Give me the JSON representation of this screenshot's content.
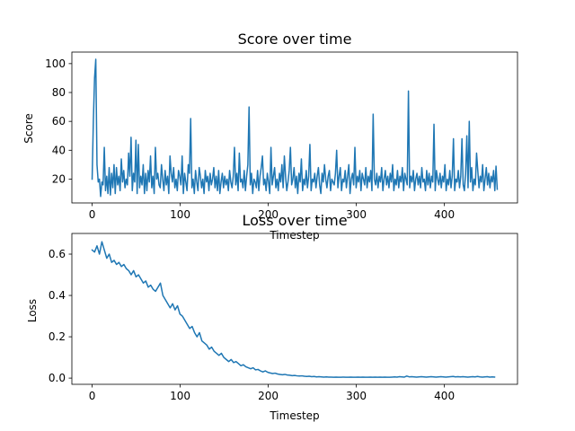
{
  "chart_data": [
    {
      "type": "line",
      "title": "Score over time",
      "xlabel": "Timestep",
      "ylabel": "Score",
      "xlim": [
        -23,
        483
      ],
      "ylim": [
        3.5,
        108
      ],
      "xticks": [
        0,
        100,
        200,
        300,
        400
      ],
      "yticks": [
        20,
        40,
        60,
        80,
        100
      ],
      "grid": false,
      "color": "#1f77b4",
      "series": [
        {
          "values": [
            20,
            60,
            90,
            103,
            30,
            18,
            20,
            8,
            18,
            16,
            42,
            12,
            22,
            10,
            28,
            9,
            24,
            14,
            30,
            10,
            28,
            16,
            22,
            12,
            34,
            18,
            26,
            14,
            20,
            16,
            38,
            22,
            49,
            12,
            24,
            18,
            47,
            10,
            44,
            14,
            22,
            16,
            30,
            10,
            24,
            12,
            26,
            18,
            36,
            14,
            22,
            10,
            42,
            20,
            24,
            16,
            14,
            30,
            20,
            12,
            26,
            16,
            22,
            10,
            36,
            24,
            18,
            28,
            14,
            20,
            12,
            26,
            22,
            16,
            36,
            10,
            24,
            18,
            12,
            30,
            24,
            62,
            14,
            20,
            10,
            26,
            18,
            12,
            28,
            22,
            14,
            20,
            10,
            26,
            18,
            22,
            12,
            24,
            16,
            20,
            28,
            14,
            22,
            12,
            26,
            10,
            18,
            24,
            14,
            22,
            16,
            20,
            12,
            26,
            18,
            14,
            22,
            42,
            16,
            24,
            12,
            38,
            18,
            20,
            14,
            26,
            12,
            22,
            30,
            70,
            16,
            24,
            10,
            20,
            18,
            14,
            26,
            12,
            22,
            28,
            36,
            16,
            20,
            12,
            24,
            18,
            10,
            42,
            16,
            22,
            28,
            14,
            20,
            12,
            24,
            18,
            30,
            14,
            36,
            22,
            12,
            18,
            26,
            42,
            16,
            20,
            28,
            14,
            22,
            10,
            24,
            18,
            34,
            12,
            20,
            16,
            26,
            14,
            22,
            44,
            12,
            20,
            18,
            24,
            14,
            22,
            28,
            16,
            10,
            24,
            18,
            30,
            20,
            14,
            22,
            26,
            12,
            20,
            18,
            16,
            24,
            40,
            14,
            22,
            28,
            12,
            20,
            18,
            26,
            14,
            22,
            30,
            10,
            20,
            24,
            16,
            42,
            14,
            22,
            18,
            26,
            12,
            24,
            20,
            16,
            28,
            14,
            22,
            18,
            26,
            12,
            65,
            20,
            16,
            24,
            14,
            22,
            18,
            28,
            12,
            20,
            26,
            16,
            22,
            14,
            24,
            18,
            30,
            12,
            20,
            16,
            26,
            14,
            22,
            18,
            28,
            12,
            24,
            20,
            16,
            81,
            14,
            22,
            18,
            26,
            12,
            20,
            24,
            16,
            22,
            14,
            28,
            18,
            20,
            12,
            26,
            16,
            24,
            14,
            22,
            18,
            58,
            12,
            26,
            20,
            16,
            24,
            14,
            22,
            18,
            30,
            12,
            20,
            16,
            26,
            14,
            22,
            48,
            12,
            20,
            18,
            26,
            14,
            22,
            48,
            16,
            12,
            24,
            50,
            14,
            60,
            18,
            28,
            12,
            20,
            16,
            38,
            26,
            14,
            22,
            18,
            30,
            12,
            20,
            28,
            16,
            24,
            14,
            22,
            18,
            26,
            12,
            29,
            13
          ]
        }
      ]
    },
    {
      "type": "line",
      "title": "Loss over time",
      "xlabel": "Timestep",
      "ylabel": "Loss",
      "xlim": [
        -23,
        483
      ],
      "ylim": [
        -0.03,
        0.7
      ],
      "xticks": [
        0,
        100,
        200,
        300,
        400
      ],
      "yticks": [
        0.0,
        0.2,
        0.4,
        0.6
      ],
      "grid": false,
      "color": "#1f77b4",
      "series": [
        {
          "values": [
            0.62,
            0.61,
            0.64,
            0.6,
            0.66,
            0.62,
            0.58,
            0.6,
            0.56,
            0.57,
            0.55,
            0.56,
            0.54,
            0.55,
            0.53,
            0.52,
            0.5,
            0.52,
            0.49,
            0.5,
            0.48,
            0.46,
            0.47,
            0.44,
            0.45,
            0.43,
            0.42,
            0.44,
            0.46,
            0.4,
            0.38,
            0.36,
            0.34,
            0.36,
            0.33,
            0.35,
            0.31,
            0.3,
            0.28,
            0.26,
            0.24,
            0.25,
            0.22,
            0.2,
            0.22,
            0.18,
            0.17,
            0.16,
            0.14,
            0.15,
            0.13,
            0.12,
            0.11,
            0.12,
            0.1,
            0.09,
            0.08,
            0.09,
            0.075,
            0.08,
            0.07,
            0.06,
            0.065,
            0.055,
            0.05,
            0.045,
            0.05,
            0.04,
            0.042,
            0.035,
            0.03,
            0.035,
            0.028,
            0.025,
            0.022,
            0.024,
            0.02,
            0.018,
            0.016,
            0.018,
            0.015,
            0.014,
            0.012,
            0.013,
            0.011,
            0.01,
            0.011,
            0.009,
            0.008,
            0.009,
            0.007,
            0.008,
            0.006,
            0.007,
            0.006,
            0.005,
            0.006,
            0.005,
            0.005,
            0.004,
            0.005,
            0.004,
            0.004,
            0.005,
            0.004,
            0.004,
            0.005,
            0.004,
            0.004,
            0.005,
            0.004,
            0.005,
            0.004,
            0.004,
            0.005,
            0.004,
            0.005,
            0.004,
            0.005,
            0.004,
            0.005,
            0.004,
            0.004,
            0.005,
            0.006,
            0.005,
            0.007,
            0.006,
            0.005,
            0.01,
            0.006,
            0.007,
            0.006,
            0.005,
            0.006,
            0.007,
            0.006,
            0.005,
            0.006,
            0.007,
            0.006,
            0.005,
            0.006,
            0.007,
            0.006,
            0.005,
            0.006,
            0.007,
            0.008,
            0.006,
            0.007,
            0.006,
            0.007,
            0.006,
            0.005,
            0.006,
            0.007,
            0.006,
            0.008,
            0.006,
            0.005,
            0.006,
            0.007,
            0.005,
            0.006,
            0.005
          ]
        }
      ]
    }
  ]
}
